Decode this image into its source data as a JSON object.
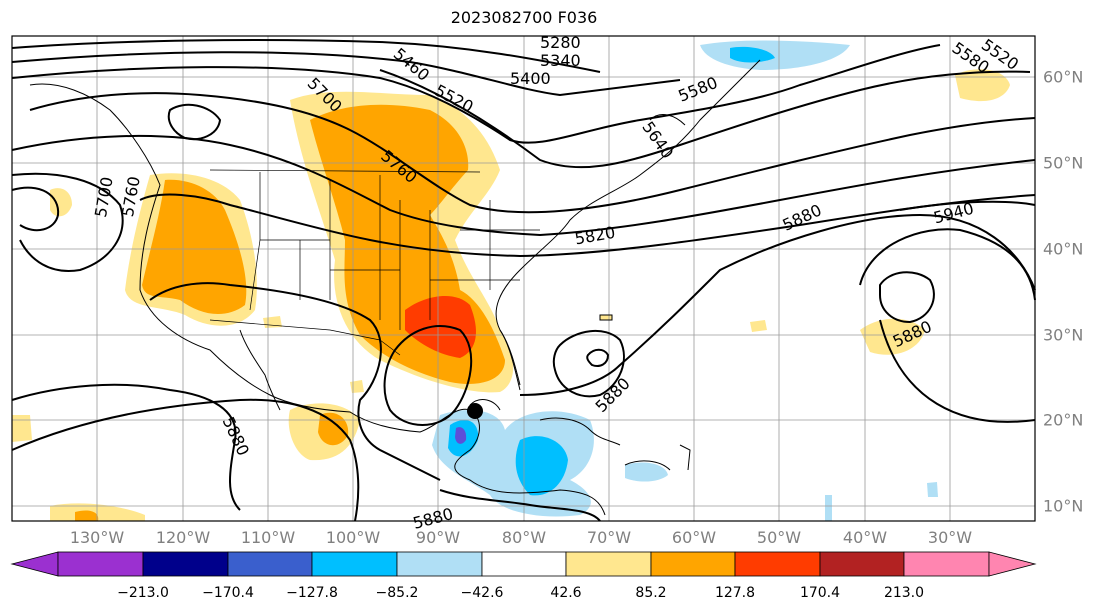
{
  "title": "2023082700 F036",
  "lon_labels": [
    "130°W",
    "120°W",
    "110°W",
    "100°W",
    "90°W",
    "80°W",
    "70°W",
    "60°W",
    "50°W",
    "40°W",
    "30°W"
  ],
  "lat_labels": [
    "60°N",
    "50°N",
    "40°N",
    "30°N",
    "20°N",
    "10°N"
  ],
  "colorbar": {
    "ticks": [
      "−213.0",
      "−170.4",
      "−127.8",
      "−85.2",
      "−42.6",
      "42.6",
      "85.2",
      "127.8",
      "170.4",
      "213.0"
    ],
    "colors": [
      "#9b30d0",
      "#00008b",
      "#3a5fcd",
      "#00bfff",
      "#b0dff5",
      "#ffffff",
      "#ffe78f",
      "#ffa500",
      "#ff3c00",
      "#b22222",
      "#ff85b0"
    ]
  },
  "contour_labels": [
    "5280",
    "5340",
    "5400",
    "5460",
    "5520",
    "5580",
    "5520",
    "5580",
    "5640",
    "5700",
    "5760",
    "5700",
    "5760",
    "5820",
    "5880",
    "5940",
    "5880",
    "5880",
    "5880",
    "5880"
  ],
  "marker": "storm-center"
}
